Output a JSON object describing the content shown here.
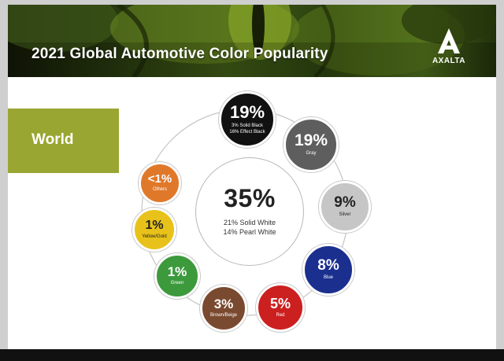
{
  "slide": {
    "title": "2021 Global Automotive Color Popularity",
    "brand": "AXALTA",
    "region": "World"
  },
  "chart_data": {
    "type": "pie",
    "title": "2021 Global Automotive Color Popularity",
    "region": "World",
    "unit": "%",
    "center": {
      "name": "White",
      "value": 35,
      "label": "35%",
      "details": [
        "21% Solid White",
        "14% Pearl White"
      ]
    },
    "slices": [
      {
        "name": "White",
        "value": 35,
        "label": "35%",
        "details": [
          "21% Solid White",
          "14% Pearl White"
        ],
        "color": "#ffffff"
      },
      {
        "name": "Black",
        "value": 19,
        "label": "19%",
        "details": [
          "3% Solid Black",
          "16% Effect Black"
        ],
        "color": "#111111"
      },
      {
        "name": "Gray",
        "value": 19,
        "label": "19%",
        "details": [
          "Gray"
        ],
        "color": "#5e5e5e"
      },
      {
        "name": "Silver",
        "value": 9,
        "label": "9%",
        "details": [
          "Silver"
        ],
        "color": "#c6c6c6"
      },
      {
        "name": "Blue",
        "value": 8,
        "label": "8%",
        "details": [
          "Blue"
        ],
        "color": "#1b2f8f"
      },
      {
        "name": "Red",
        "value": 5,
        "label": "5%",
        "details": [
          "Red"
        ],
        "color": "#cc1f1f"
      },
      {
        "name": "Brown/Beige",
        "value": 3,
        "label": "3%",
        "details": [
          "Brown/Beige"
        ],
        "color": "#7a4a30"
      },
      {
        "name": "Green",
        "value": 1,
        "label": "1%",
        "details": [
          "Green"
        ],
        "color": "#3c9a3c"
      },
      {
        "name": "Yellow/Gold",
        "value": 1,
        "label": "1%",
        "details": [
          "Yellow/Gold"
        ],
        "color": "#e8c21a"
      },
      {
        "name": "Others",
        "value": 1,
        "label": "<1%",
        "details": [
          "Others"
        ],
        "color": "#e0782a"
      }
    ]
  }
}
